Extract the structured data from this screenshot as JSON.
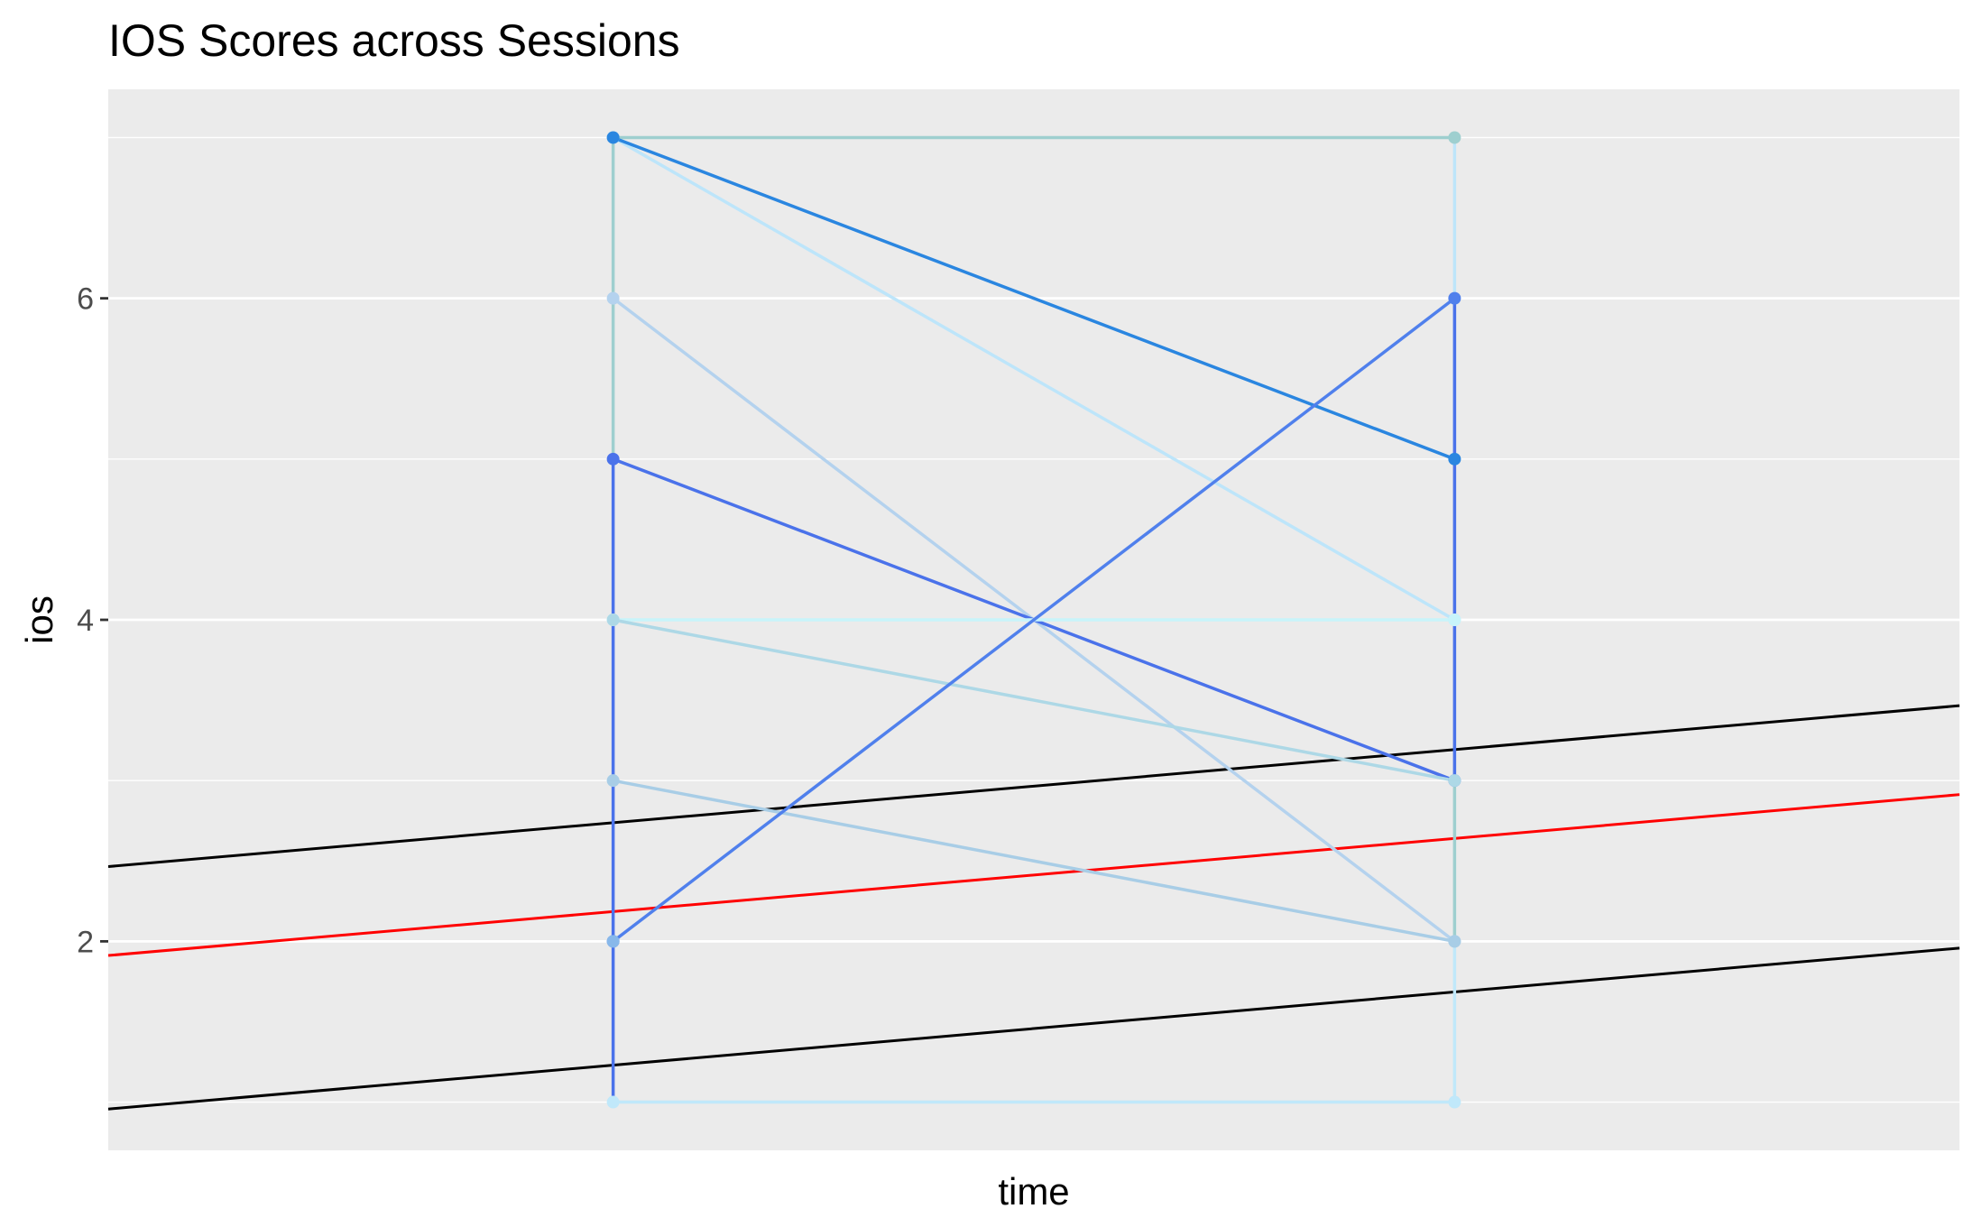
{
  "chart_data": {
    "type": "line",
    "title": "IOS Scores across Sessions",
    "xlabel": "time",
    "ylabel": "ios",
    "x": [
      1,
      2
    ],
    "xlim": [
      0.4,
      2.6
    ],
    "ylim": [
      0.7,
      7.3
    ],
    "y_ticks": [
      2,
      4,
      6
    ],
    "y_minor_ticks": [
      1,
      3,
      5,
      7
    ],
    "x_ticks": [],
    "grid": true,
    "legend": "none",
    "panel_background": "#EBEBEB",
    "grid_color": "#FFFFFF",
    "series": [
      {
        "values": [
          7,
          7
        ],
        "color": "#9ECFCF"
      },
      {
        "values": [
          7,
          4
        ],
        "color": "#BDE5FA"
      },
      {
        "values": [
          7,
          5
        ],
        "color": "#2A86E0"
      },
      {
        "values": [
          6,
          2
        ],
        "color": "#B4D2EE"
      },
      {
        "values": [
          5,
          3
        ],
        "color": "#4A72EA"
      },
      {
        "values": [
          4,
          4
        ],
        "color": "#C8F4FA"
      },
      {
        "values": [
          4,
          3
        ],
        "color": "#ADD8E6"
      },
      {
        "values": [
          3,
          2
        ],
        "color": "#A8CDE6"
      },
      {
        "values": [
          1,
          1
        ],
        "color": "#C0E8FA"
      },
      {
        "values": [
          2,
          6
        ],
        "color": "#5080EC"
      }
    ],
    "vertical_segments": [
      {
        "x": 1,
        "y": [
          5,
          7
        ],
        "color": "#9ECFCF"
      },
      {
        "x": 1,
        "y": [
          1,
          5
        ],
        "color": "#4A72EA"
      },
      {
        "x": 2,
        "y": [
          5,
          7
        ],
        "color": "#BDE5FA"
      },
      {
        "x": 2,
        "y": [
          3,
          6
        ],
        "color": "#4A72EA"
      },
      {
        "x": 2,
        "y": [
          2,
          3
        ],
        "color": "#9ECFCF"
      },
      {
        "x": 2,
        "y": [
          1,
          2
        ],
        "color": "#C0E8FA"
      }
    ],
    "extra_points": [
      {
        "x": 1,
        "y": 2,
        "color": "#88B8EA"
      }
    ],
    "reference_lines": [
      {
        "color": "#000000",
        "intercept": 2.283,
        "slope": 0.455
      },
      {
        "color": "#FF0000",
        "intercept": 1.73,
        "slope": 0.455
      },
      {
        "color": "#000000",
        "intercept": 0.775,
        "slope": 0.455
      }
    ]
  }
}
